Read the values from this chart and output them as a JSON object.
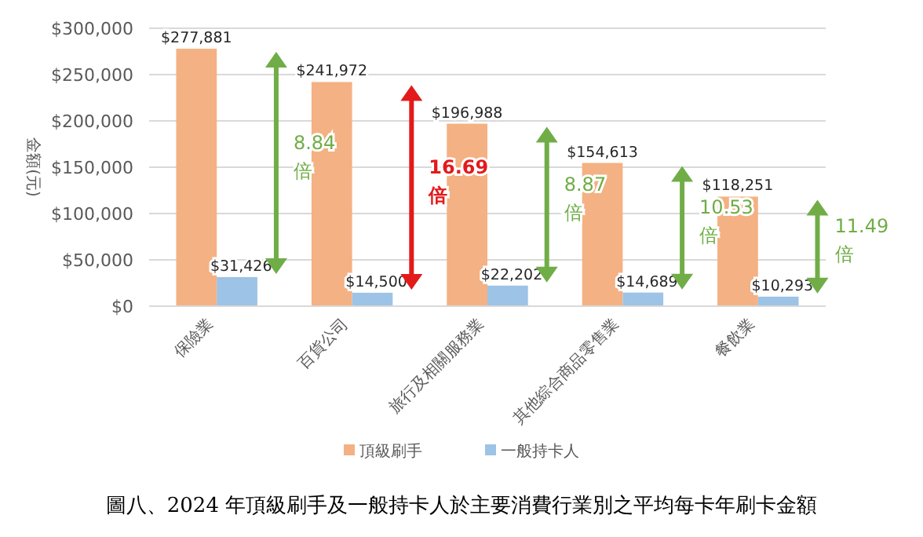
{
  "chart_data": {
    "type": "bar",
    "title": "圖八、2024 年頂級刷手及一般持卡人於主要消費行業別之平均每卡年刷卡金額",
    "ylabel": "金額(元)",
    "categories": [
      "保險業",
      "百貨公司",
      "旅行及相關服務業",
      "其他綜合商品零售業",
      "餐飲業"
    ],
    "series": [
      {
        "name": "頂級刷手",
        "color": "#f4b183",
        "values": [
          277881,
          241972,
          196988,
          154613,
          118251
        ],
        "value_labels": [
          "$277,881",
          "$241,972",
          "$196,988",
          "$154,613",
          "$118,251"
        ]
      },
      {
        "name": "一般持卡人",
        "color": "#9dc3e6",
        "values": [
          31426,
          14500,
          22202,
          14689,
          10293
        ],
        "value_labels": [
          "$31,426",
          "$14,500",
          "$22,202",
          "$14,689",
          "$10,293"
        ]
      }
    ],
    "ylim": [
      0,
      300000
    ],
    "yticks": [
      {
        "value": 0,
        "label": "$0"
      },
      {
        "value": 50000,
        "label": "$50,000"
      },
      {
        "value": 100000,
        "label": "$100,000"
      },
      {
        "value": 150000,
        "label": "$150,000"
      },
      {
        "value": 200000,
        "label": "$200,000"
      },
      {
        "value": 250000,
        "label": "$250,000"
      },
      {
        "value": 300000,
        "label": "$300,000"
      }
    ],
    "grid": "y",
    "legend": "bottom",
    "annotations": [
      "8.84\n倍",
      "16.69\n倍",
      "8.87\n倍",
      "10.53\n倍",
      "11.49\n倍"
    ]
  }
}
